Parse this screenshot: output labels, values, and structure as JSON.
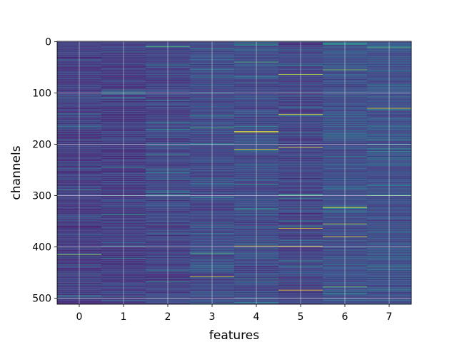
{
  "chart_data": {
    "type": "heatmap",
    "title": "",
    "xlabel": "features",
    "ylabel": "channels",
    "x_ticks": [
      "0",
      "1",
      "2",
      "3",
      "4",
      "5",
      "6",
      "7"
    ],
    "y_ticks": [
      "0",
      "100",
      "200",
      "300",
      "400",
      "500"
    ],
    "y_tick_values": [
      0,
      100,
      200,
      300,
      400,
      500
    ],
    "n_features": 8,
    "n_channels": 512,
    "grid": true,
    "colormap": "viridis",
    "column_mean_levels": [
      0.18,
      0.18,
      0.2,
      0.22,
      0.22,
      0.2,
      0.24,
      0.24
    ],
    "highlights": [
      {
        "feature": 0,
        "channel": 415,
        "level": 0.8
      },
      {
        "feature": 1,
        "channel": 400,
        "level": 0.6
      },
      {
        "feature": 1,
        "channel": 102,
        "level": 0.5
      },
      {
        "feature": 2,
        "channel": 10,
        "level": 0.7
      },
      {
        "feature": 2,
        "channel": 220,
        "level": 0.6
      },
      {
        "feature": 2,
        "channel": 298,
        "level": 0.6
      },
      {
        "feature": 3,
        "channel": 168,
        "level": 0.7
      },
      {
        "feature": 3,
        "channel": 412,
        "level": 0.7
      },
      {
        "feature": 3,
        "channel": 458,
        "level": 0.95
      },
      {
        "feature": 4,
        "channel": 175,
        "level": 1.0
      },
      {
        "feature": 4,
        "channel": 178,
        "level": 0.9
      },
      {
        "feature": 4,
        "channel": 210,
        "level": 1.0
      },
      {
        "feature": 4,
        "channel": 40,
        "level": 0.7
      },
      {
        "feature": 4,
        "channel": 398,
        "level": 0.9
      },
      {
        "feature": 4,
        "channel": 5,
        "level": 0.6
      },
      {
        "feature": 5,
        "channel": 64,
        "level": 0.9
      },
      {
        "feature": 5,
        "channel": 142,
        "level": 1.0
      },
      {
        "feature": 5,
        "channel": 206,
        "level": 1.0
      },
      {
        "feature": 5,
        "channel": 299,
        "level": 0.7
      },
      {
        "feature": 5,
        "channel": 364,
        "level": 1.0
      },
      {
        "feature": 5,
        "channel": 399,
        "level": 1.0
      },
      {
        "feature": 5,
        "channel": 484,
        "level": 1.0
      },
      {
        "feature": 6,
        "channel": 55,
        "level": 0.8
      },
      {
        "feature": 6,
        "channel": 323,
        "level": 1.0
      },
      {
        "feature": 6,
        "channel": 355,
        "level": 0.9
      },
      {
        "feature": 6,
        "channel": 380,
        "level": 1.0
      },
      {
        "feature": 6,
        "channel": 478,
        "level": 0.8
      },
      {
        "feature": 7,
        "channel": 130,
        "level": 0.95
      },
      {
        "feature": 7,
        "channel": 12,
        "level": 0.7
      },
      {
        "feature": 7,
        "channel": 300,
        "level": 0.7
      }
    ]
  }
}
